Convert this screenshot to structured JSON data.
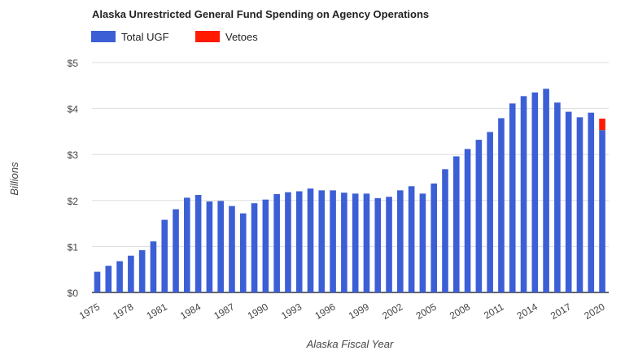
{
  "chart_data": {
    "type": "bar",
    "stacked": true,
    "title": "Alaska Unrestricted General Fund Spending on Agency Operations",
    "xlabel": "Alaska Fiscal Year",
    "ylabel": "Billions",
    "ylim": [
      0,
      5
    ],
    "yticks": [
      "$0",
      "$1",
      "$2",
      "$3",
      "$4",
      "$5"
    ],
    "xticks": [
      "1975",
      "1978",
      "1981",
      "1984",
      "1987",
      "1990",
      "1993",
      "1996",
      "1999",
      "2002",
      "2005",
      "2008",
      "2011",
      "2014",
      "2017",
      "2020"
    ],
    "grid": true,
    "legend_position": "top-left",
    "categories": [
      1975,
      1976,
      1977,
      1978,
      1979,
      1980,
      1981,
      1982,
      1983,
      1984,
      1985,
      1986,
      1987,
      1988,
      1989,
      1990,
      1991,
      1992,
      1993,
      1994,
      1995,
      1996,
      1997,
      1998,
      1999,
      2000,
      2001,
      2002,
      2003,
      2004,
      2005,
      2006,
      2007,
      2008,
      2009,
      2010,
      2011,
      2012,
      2013,
      2014,
      2015,
      2016,
      2017,
      2018,
      2019,
      2020
    ],
    "series": [
      {
        "name": "Total UGF",
        "color": "#3c5fd6",
        "values": [
          0.45,
          0.58,
          0.68,
          0.8,
          0.92,
          1.11,
          1.58,
          1.81,
          2.06,
          2.12,
          1.98,
          1.99,
          1.88,
          1.72,
          1.94,
          2.02,
          2.14,
          2.18,
          2.2,
          2.26,
          2.22,
          2.22,
          2.17,
          2.15,
          2.15,
          2.05,
          2.08,
          2.22,
          2.31,
          2.15,
          2.37,
          2.68,
          2.96,
          3.12,
          3.32,
          3.49,
          3.79,
          4.11,
          4.27,
          4.35,
          4.43,
          4.13,
          3.93,
          3.81,
          3.91,
          3.53
        ]
      },
      {
        "name": "Vetoes",
        "color": "#ff1a00",
        "values": [
          0,
          0,
          0,
          0,
          0,
          0,
          0,
          0,
          0,
          0,
          0,
          0,
          0,
          0,
          0,
          0,
          0,
          0,
          0,
          0,
          0,
          0,
          0,
          0,
          0,
          0,
          0,
          0,
          0,
          0,
          0,
          0,
          0,
          0,
          0,
          0,
          0,
          0,
          0,
          0,
          0,
          0,
          0,
          0,
          0,
          0.25
        ]
      }
    ]
  }
}
